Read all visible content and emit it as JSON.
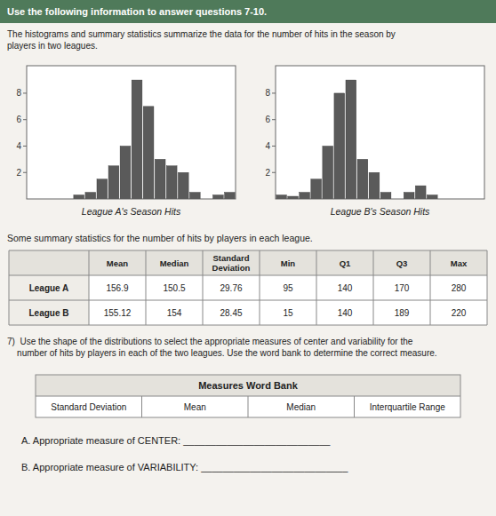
{
  "chart_data": [
    {
      "type": "bar",
      "x_label": "League A's Season Hits",
      "categories": [
        null,
        null,
        null,
        null,
        null,
        null,
        null,
        null,
        null,
        null,
        null,
        null,
        null,
        null,
        null,
        null,
        null,
        null
      ],
      "values": [
        0,
        0,
        0,
        0,
        0.3,
        0.5,
        1.5,
        2.5,
        4,
        9,
        7,
        3,
        2.5,
        2,
        0.5,
        0,
        0.3,
        0.5
      ],
      "color": "#5a5a5a",
      "ylim": [
        0,
        10.08
      ],
      "yticks": [
        2,
        4,
        6,
        8
      ],
      "grid": false,
      "tick_labels": "y"
    },
    {
      "type": "bar",
      "x_label": "League B's Season Hits",
      "categories": [
        null,
        null,
        null,
        null,
        null,
        null,
        null,
        null,
        null,
        null,
        null,
        null,
        null,
        null,
        null,
        null,
        null,
        null
      ],
      "values": [
        0.3,
        0.2,
        0.5,
        1.5,
        4,
        8,
        9,
        3,
        2,
        0.5,
        0,
        0.5,
        1,
        0.3,
        0,
        0,
        0,
        0
      ],
      "color": "#5a5a5a",
      "ylim": [
        0,
        10.08
      ],
      "yticks": [
        2,
        4,
        6,
        8
      ],
      "grid": false,
      "tick_labels": "y"
    }
  ],
  "header_text": "Use the following information to answer questions 7-10.",
  "subheader": [
    "The histograms and summary statistics summarize the data for the number of hits in the season by",
    "players in two leagues."
  ],
  "table": {
    "title": "Some summary statistics for the number of hits by players in each league.",
    "columns": [
      "Mean",
      "Median",
      "Standard\nDeviation",
      "Min",
      "Q1",
      "Q3",
      "Max"
    ],
    "rows": [
      {
        "name": "League A",
        "values": [
          156.9,
          150.5,
          29.76,
          95,
          140,
          170,
          280
        ]
      },
      {
        "name": "League B",
        "values": [
          155.12,
          154,
          28.45,
          15,
          140,
          189,
          220
        ]
      }
    ]
  },
  "question": [
    "7)  Use the shape of the distributions to select the appropriate measures of center and variability for the",
    "    number of hits by players in each of the two leagues. Use the word bank to determine the correct measure."
  ],
  "word_bank": {
    "title": "Measures Word Bank",
    "items": [
      "Standard Deviation",
      "Mean",
      "Median",
      "Interquartile Range"
    ]
  },
  "answers": [
    "A.  Appropriate measure of CENTER: ___________________________",
    "B.  Appropriate measure of VARIABILITY: ___________________________"
  ]
}
